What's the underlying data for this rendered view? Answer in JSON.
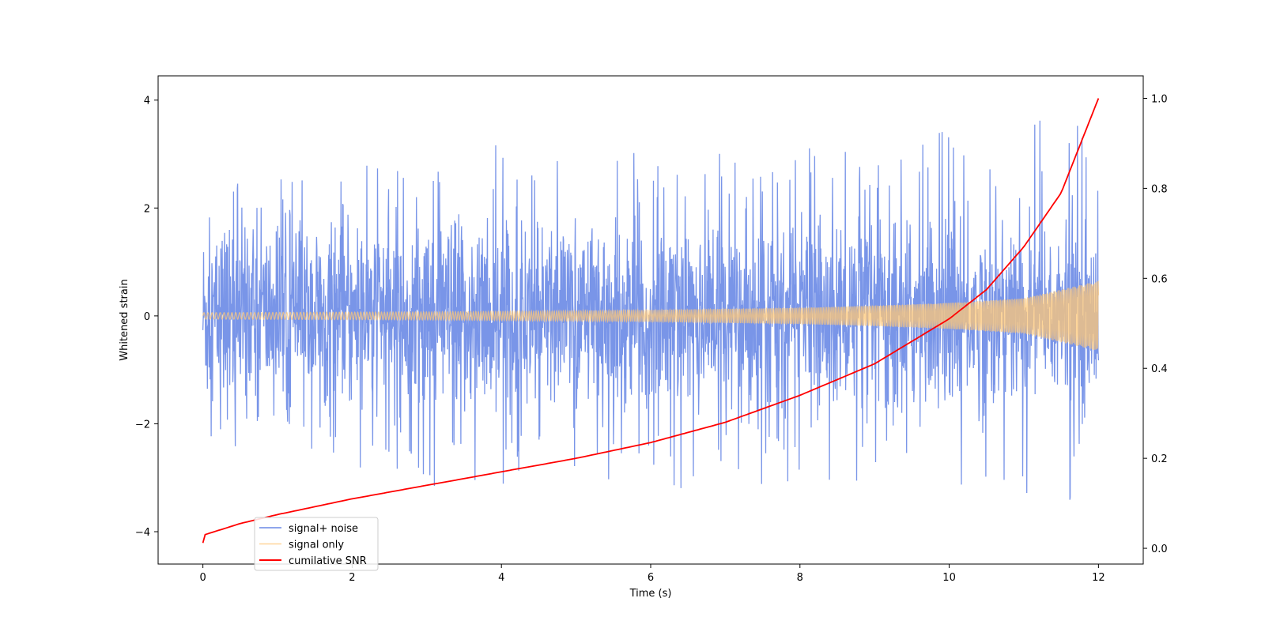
{
  "chart_data": {
    "type": "line",
    "xlabel": "Time (s)",
    "ylabel": "Whitened strain",
    "xlim": [
      -0.6,
      12.6
    ],
    "ylim": [
      -4.6,
      4.45
    ],
    "y2lim": [
      -0.035,
      1.05
    ],
    "x_ticks": [
      0,
      2,
      4,
      6,
      8,
      10,
      12
    ],
    "y_ticks": [
      -4,
      -2,
      0,
      2,
      4
    ],
    "y2_ticks": [
      0.0,
      0.2,
      0.4,
      0.6,
      0.8,
      1.0
    ],
    "x_tick_labels": [
      "0",
      "2",
      "4",
      "6",
      "8",
      "10",
      "12"
    ],
    "y_tick_labels": [
      "−4",
      "−2",
      "0",
      "2",
      "4"
    ],
    "y2_tick_labels": [
      "0.0",
      "0.2",
      "0.4",
      "0.6",
      "0.8",
      "1.0"
    ],
    "legend_position": "lower-left",
    "grid": false,
    "series": [
      {
        "name": "signal+ noise",
        "axis": "left",
        "color": "#6a89e6",
        "description_range": [
          -3.7,
          4.0
        ],
        "x": [
          0,
          1,
          2,
          3,
          4,
          5,
          6,
          7,
          8,
          9,
          10,
          11,
          12
        ],
        "envelope_upper": [
          2.3,
          2.4,
          2.6,
          2.9,
          3.1,
          2.8,
          2.9,
          2.9,
          3.0,
          3.0,
          3.4,
          3.5,
          3.5
        ],
        "envelope_lower": [
          -2.4,
          -2.5,
          -2.8,
          -3.0,
          -3.0,
          -2.9,
          -3.0,
          -3.1,
          -3.0,
          -3.0,
          -3.3,
          -3.4,
          -3.5
        ]
      },
      {
        "name": "signal only",
        "axis": "left",
        "color": "#ffc878",
        "x": [
          0,
          1,
          2,
          3,
          4,
          5,
          6,
          7,
          8,
          9,
          10,
          11,
          12
        ],
        "amplitude": [
          0.06,
          0.065,
          0.07,
          0.075,
          0.085,
          0.095,
          0.11,
          0.13,
          0.15,
          0.19,
          0.24,
          0.33,
          0.65
        ]
      },
      {
        "name": "cumilative SNR",
        "axis": "right",
        "color": "#ff0000",
        "x": [
          0,
          0.02,
          0.5,
          1,
          2,
          3,
          4,
          5,
          6,
          7,
          8,
          9,
          10,
          10.5,
          11,
          11.5,
          12
        ],
        "y": [
          0.012,
          0.03,
          0.055,
          0.075,
          0.11,
          0.14,
          0.17,
          0.2,
          0.235,
          0.28,
          0.34,
          0.41,
          0.51,
          0.575,
          0.67,
          0.79,
          1.0
        ]
      }
    ]
  }
}
